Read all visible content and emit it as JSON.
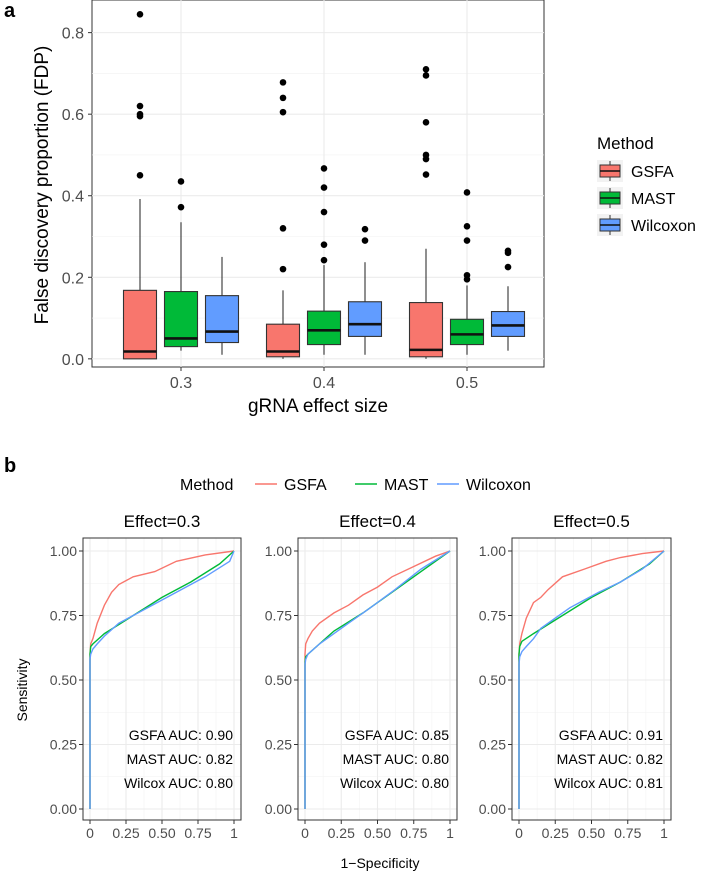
{
  "panel_a": {
    "label": "a",
    "chart_data": {
      "type": "box",
      "xlabel": "gRNA effect size",
      "ylabel": "False discovery proportion (FDP)",
      "ylim": [
        -0.02,
        0.88
      ],
      "yticks": [
        0.0,
        0.2,
        0.4,
        0.6,
        0.8
      ],
      "ytick_labels": [
        "0.0",
        "0.2",
        "0.4",
        "0.6",
        "0.8"
      ],
      "categories": [
        "0.3",
        "0.4",
        "0.5"
      ],
      "legend_title": "Method",
      "legend_position": "right",
      "series": [
        {
          "name": "GSFA",
          "color": "#F8766D",
          "boxes": [
            {
              "q1": 0.0,
              "median": 0.018,
              "q3": 0.168,
              "whisker_low": 0.0,
              "whisker_high": 0.392,
              "outliers": [
                0.845,
                0.62,
                0.6,
                0.595,
                0.45
              ]
            },
            {
              "q1": 0.005,
              "median": 0.018,
              "q3": 0.085,
              "whisker_low": 0.0,
              "whisker_high": 0.168,
              "outliers": [
                0.678,
                0.64,
                0.605,
                0.32,
                0.22
              ]
            },
            {
              "q1": 0.005,
              "median": 0.022,
              "q3": 0.138,
              "whisker_low": 0.0,
              "whisker_high": 0.27,
              "outliers": [
                0.71,
                0.695,
                0.58,
                0.5,
                0.49,
                0.452
              ]
            }
          ]
        },
        {
          "name": "MAST",
          "color": "#00BA38",
          "boxes": [
            {
              "q1": 0.03,
              "median": 0.05,
              "q3": 0.165,
              "whisker_low": 0.02,
              "whisker_high": 0.335,
              "outliers": [
                0.435,
                0.372
              ]
            },
            {
              "q1": 0.035,
              "median": 0.07,
              "q3": 0.117,
              "whisker_low": 0.01,
              "whisker_high": 0.23,
              "outliers": [
                0.467,
                0.42,
                0.36,
                0.28,
                0.242
              ]
            },
            {
              "q1": 0.035,
              "median": 0.06,
              "q3": 0.097,
              "whisker_low": 0.01,
              "whisker_high": 0.18,
              "outliers": [
                0.408,
                0.325,
                0.29,
                0.205,
                0.195
              ]
            }
          ]
        },
        {
          "name": "Wilcoxon",
          "color": "#619CFF",
          "boxes": [
            {
              "q1": 0.04,
              "median": 0.067,
              "q3": 0.155,
              "whisker_low": 0.01,
              "whisker_high": 0.25,
              "outliers": []
            },
            {
              "q1": 0.055,
              "median": 0.085,
              "q3": 0.14,
              "whisker_low": 0.01,
              "whisker_high": 0.237,
              "outliers": [
                0.318,
                0.29
              ]
            },
            {
              "q1": 0.055,
              "median": 0.082,
              "q3": 0.116,
              "whisker_low": 0.02,
              "whisker_high": 0.178,
              "outliers": [
                0.265,
                0.26,
                0.225
              ]
            }
          ]
        }
      ]
    }
  },
  "panel_b": {
    "label": "b",
    "chart_data": {
      "type": "line",
      "xlabel": "1−Specificity",
      "ylabel": "Sensitivity",
      "legend_title": "Method",
      "legend_position": "top",
      "legend": [
        {
          "name": "GSFA",
          "color": "#F8766D"
        },
        {
          "name": "MAST",
          "color": "#00BA38"
        },
        {
          "name": "Wilcoxon",
          "color": "#619CFF"
        }
      ],
      "xlim": [
        0,
        1
      ],
      "ylim": [
        0,
        1
      ],
      "xticks": [
        0,
        0.25,
        0.5,
        0.75,
        1
      ],
      "xtick_labels": [
        "0",
        "0.25",
        "0.50",
        "0.75",
        "1"
      ],
      "yticks": [
        0,
        0.25,
        0.5,
        0.75,
        1
      ],
      "ytick_labels": [
        "0.00",
        "0.25",
        "0.50",
        "0.75",
        "1.00"
      ],
      "facets": [
        {
          "title": "Effect=0.3",
          "auc_labels": [
            "GSFA AUC: 0.90",
            "MAST AUC: 0.82",
            "Wilcox AUC: 0.80"
          ],
          "series": [
            {
              "name": "GSFA",
              "x": [
                0,
                0,
                0.005,
                0.02,
                0.05,
                0.1,
                0.15,
                0.2,
                0.3,
                0.45,
                0.6,
                0.8,
                1
              ],
              "y": [
                0,
                0.6,
                0.64,
                0.66,
                0.72,
                0.79,
                0.84,
                0.87,
                0.9,
                0.92,
                0.96,
                0.985,
                1
              ]
            },
            {
              "name": "MAST",
              "x": [
                0,
                0,
                0.005,
                0.02,
                0.1,
                0.3,
                0.5,
                0.7,
                0.9,
                1
              ],
              "y": [
                0,
                0.6,
                0.63,
                0.64,
                0.68,
                0.75,
                0.82,
                0.88,
                0.95,
                1
              ]
            },
            {
              "name": "Wilcoxon",
              "x": [
                0,
                0,
                0.005,
                0.02,
                0.05,
                0.1,
                0.2,
                0.3,
                0.4,
                0.6,
                0.8,
                0.97,
                1
              ],
              "y": [
                0,
                0.58,
                0.6,
                0.62,
                0.64,
                0.67,
                0.72,
                0.75,
                0.78,
                0.84,
                0.9,
                0.96,
                1
              ]
            }
          ]
        },
        {
          "title": "Effect=0.4",
          "auc_labels": [
            "GSFA AUC: 0.85",
            "MAST AUC: 0.80",
            "Wilcox AUC: 0.80"
          ],
          "series": [
            {
              "name": "GSFA",
              "x": [
                0,
                0,
                0.005,
                0.02,
                0.05,
                0.1,
                0.2,
                0.3,
                0.4,
                0.5,
                0.6,
                0.75,
                0.9,
                1
              ],
              "y": [
                0,
                0.6,
                0.64,
                0.66,
                0.69,
                0.72,
                0.76,
                0.79,
                0.83,
                0.86,
                0.9,
                0.94,
                0.98,
                1
              ]
            },
            {
              "name": "MAST",
              "x": [
                0,
                0,
                0.005,
                0.02,
                0.1,
                0.2,
                0.4,
                0.6,
                0.8,
                1
              ],
              "y": [
                0,
                0.57,
                0.59,
                0.6,
                0.64,
                0.69,
                0.76,
                0.84,
                0.92,
                1
              ]
            },
            {
              "name": "Wilcoxon",
              "x": [
                0,
                0,
                0.005,
                0.02,
                0.1,
                0.2,
                0.3,
                0.45,
                0.62,
                0.8,
                1
              ],
              "y": [
                0,
                0.56,
                0.58,
                0.6,
                0.64,
                0.68,
                0.72,
                0.78,
                0.85,
                0.93,
                1
              ]
            }
          ]
        },
        {
          "title": "Effect=0.5",
          "auc_labels": [
            "GSFA AUC: 0.91",
            "MAST AUC: 0.82",
            "Wilcox AUC: 0.81"
          ],
          "series": [
            {
              "name": "GSFA",
              "x": [
                0,
                0,
                0.005,
                0.02,
                0.05,
                0.1,
                0.15,
                0.2,
                0.3,
                0.45,
                0.6,
                0.7,
                0.85,
                1
              ],
              "y": [
                0,
                0.6,
                0.64,
                0.68,
                0.74,
                0.8,
                0.82,
                0.85,
                0.9,
                0.93,
                0.96,
                0.975,
                0.99,
                1
              ]
            },
            {
              "name": "MAST",
              "x": [
                0,
                0,
                0.005,
                0.02,
                0.1,
                0.3,
                0.5,
                0.7,
                0.9,
                1
              ],
              "y": [
                0,
                0.6,
                0.63,
                0.65,
                0.68,
                0.75,
                0.82,
                0.88,
                0.95,
                1
              ]
            },
            {
              "name": "Wilcoxon",
              "x": [
                0,
                0,
                0.005,
                0.02,
                0.05,
                0.1,
                0.15,
                0.25,
                0.35,
                0.45,
                0.55,
                0.7,
                0.85,
                1
              ],
              "y": [
                0,
                0.56,
                0.59,
                0.61,
                0.63,
                0.66,
                0.7,
                0.74,
                0.78,
                0.81,
                0.84,
                0.88,
                0.93,
                1
              ]
            }
          ]
        }
      ]
    }
  }
}
